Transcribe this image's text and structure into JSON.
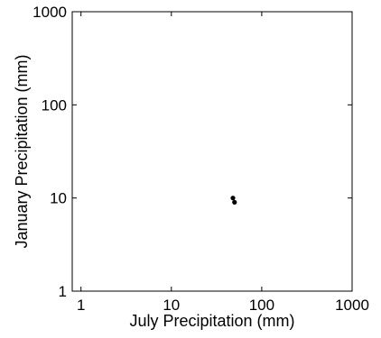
{
  "chart_data": {
    "type": "scatter",
    "xlabel": "July Precipitation (mm)",
    "ylabel": "January Precipitation (mm)",
    "x_scale": "log",
    "y_scale": "log",
    "xlim": [
      0.8,
      1000
    ],
    "ylim": [
      1,
      1000
    ],
    "x_ticks": [
      1,
      10,
      100,
      1000
    ],
    "y_ticks": [
      1,
      10,
      100,
      1000
    ],
    "x_tick_labels": [
      "1",
      "10",
      "100",
      "1000"
    ],
    "y_tick_labels": [
      "1",
      "10",
      "100",
      "1000"
    ],
    "grid": false,
    "colors": {
      "points": "#000000",
      "axes": "#000000"
    },
    "points": [
      {
        "x": 48,
        "y": 10
      },
      {
        "x": 50,
        "y": 9
      }
    ]
  }
}
